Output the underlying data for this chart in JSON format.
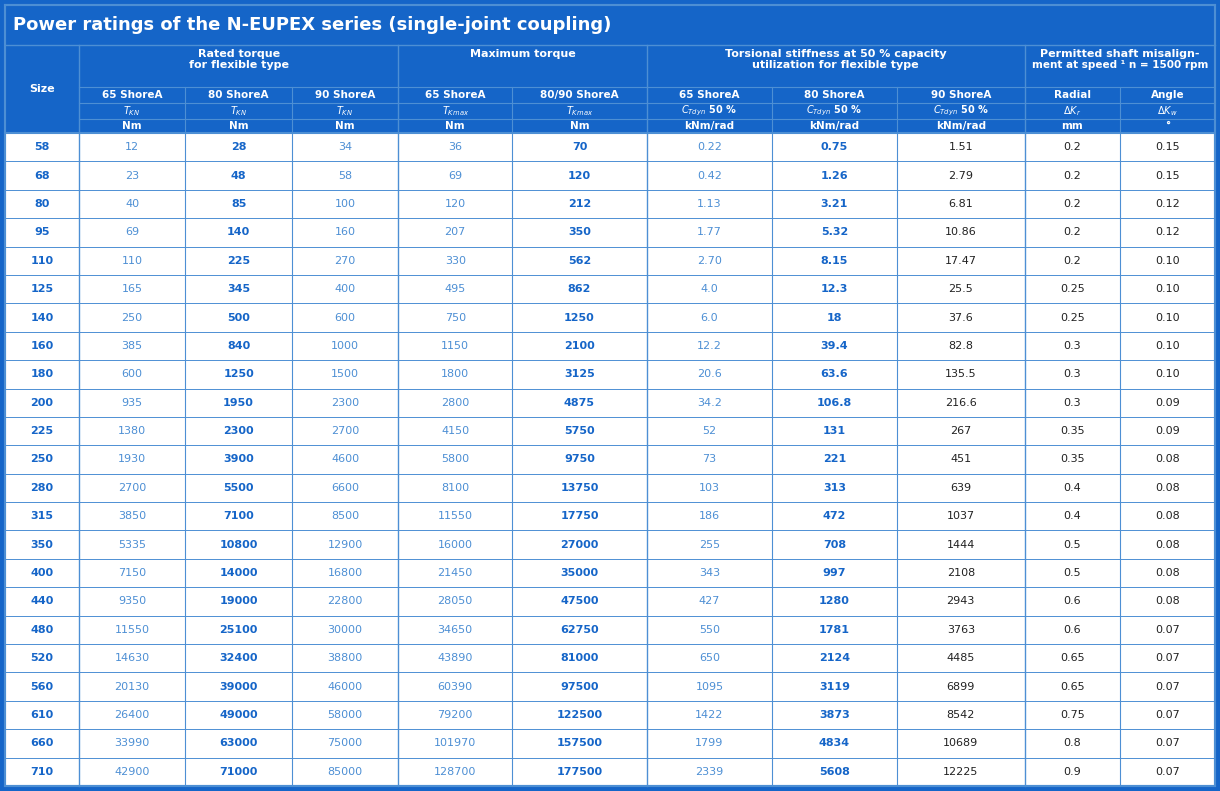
{
  "title": "Power ratings of the N-EUPEX series (single-joint coupling)",
  "bg_color": "#1565c8",
  "border_color": "#4d8fd4",
  "white": "#ffffff",
  "text_blue": "#1565c8",
  "text_light_blue": "#4d8fd4",
  "text_dark": "#1a1a2e",
  "sizes": [
    58,
    68,
    80,
    95,
    110,
    125,
    140,
    160,
    180,
    200,
    225,
    250,
    280,
    315,
    350,
    400,
    440,
    480,
    520,
    560,
    610,
    660,
    710
  ],
  "col1": [
    "12",
    "23",
    "40",
    "69",
    "110",
    "165",
    "250",
    "385",
    "600",
    "935",
    "1380",
    "1930",
    "2700",
    "3850",
    "5335",
    "7150",
    "9350",
    "11550",
    "14630",
    "20130",
    "26400",
    "33990",
    "42900"
  ],
  "col2": [
    "28",
    "48",
    "85",
    "140",
    "225",
    "345",
    "500",
    "840",
    "1250",
    "1950",
    "2300",
    "3900",
    "5500",
    "7100",
    "10800",
    "14000",
    "19000",
    "25100",
    "32400",
    "39000",
    "49000",
    "63000",
    "71000"
  ],
  "col3": [
    "34",
    "58",
    "100",
    "160",
    "270",
    "400",
    "600",
    "1000",
    "1500",
    "2300",
    "2700",
    "4600",
    "6600",
    "8500",
    "12900",
    "16800",
    "22800",
    "30000",
    "38800",
    "46000",
    "58000",
    "75000",
    "85000"
  ],
  "col4": [
    "36",
    "69",
    "120",
    "207",
    "330",
    "495",
    "750",
    "1150",
    "1800",
    "2800",
    "4150",
    "5800",
    "8100",
    "11550",
    "16000",
    "21450",
    "28050",
    "34650",
    "43890",
    "60390",
    "79200",
    "101970",
    "128700"
  ],
  "col5": [
    "70",
    "120",
    "212",
    "350",
    "562",
    "862",
    "1250",
    "2100",
    "3125",
    "4875",
    "5750",
    "9750",
    "13750",
    "17750",
    "27000",
    "35000",
    "47500",
    "62750",
    "81000",
    "97500",
    "122500",
    "157500",
    "177500"
  ],
  "col6": [
    "0.22",
    "0.42",
    "1.13",
    "1.77",
    "2.70",
    "4.0",
    "6.0",
    "12.2",
    "20.6",
    "34.2",
    "52",
    "73",
    "103",
    "186",
    "255",
    "343",
    "427",
    "550",
    "650",
    "1095",
    "1422",
    "1799",
    "2339"
  ],
  "col7": [
    "0.75",
    "1.26",
    "3.21",
    "5.32",
    "8.15",
    "12.3",
    "18",
    "39.4",
    "63.6",
    "106.8",
    "131",
    "221",
    "313",
    "472",
    "708",
    "997",
    "1280",
    "1781",
    "2124",
    "3119",
    "3873",
    "4834",
    "5608"
  ],
  "col8": [
    "1.51",
    "2.79",
    "6.81",
    "10.86",
    "17.47",
    "25.5",
    "37.6",
    "82.8",
    "135.5",
    "216.6",
    "267",
    "451",
    "639",
    "1037",
    "1444",
    "2108",
    "2943",
    "3763",
    "4485",
    "6899",
    "8542",
    "10689",
    "12225"
  ],
  "col9": [
    "0.2",
    "0.2",
    "0.2",
    "0.2",
    "0.2",
    "0.25",
    "0.25",
    "0.3",
    "0.3",
    "0.3",
    "0.35",
    "0.35",
    "0.4",
    "0.4",
    "0.5",
    "0.5",
    "0.6",
    "0.6",
    "0.65",
    "0.65",
    "0.75",
    "0.8",
    "0.9"
  ],
  "col10": [
    "0.15",
    "0.15",
    "0.12",
    "0.12",
    "0.10",
    "0.10",
    "0.10",
    "0.10",
    "0.10",
    "0.09",
    "0.09",
    "0.08",
    "0.08",
    "0.08",
    "0.08",
    "0.08",
    "0.08",
    "0.07",
    "0.07",
    "0.07",
    "0.07",
    "0.07",
    "0.07"
  ]
}
